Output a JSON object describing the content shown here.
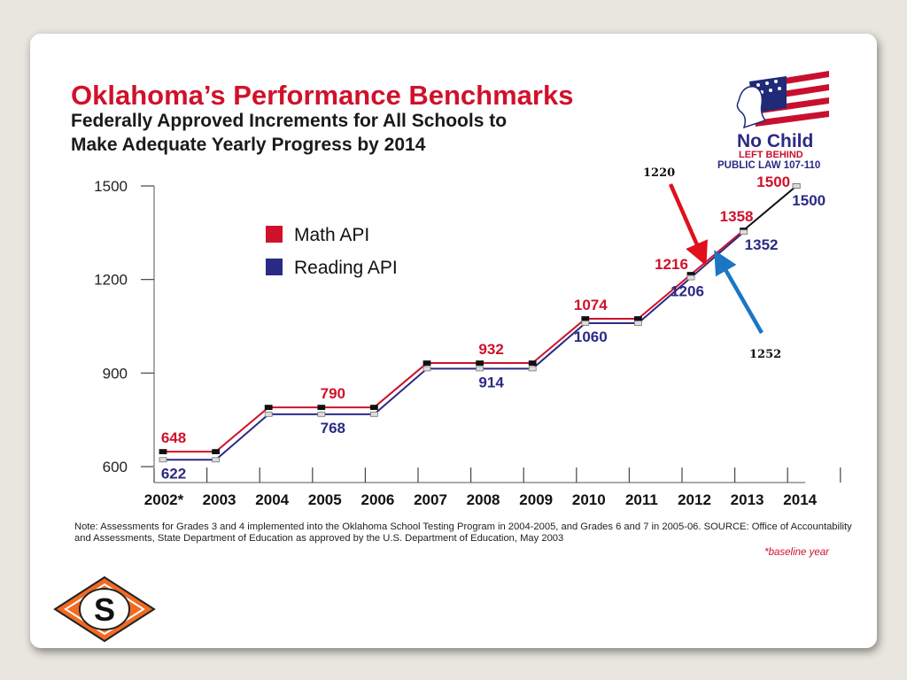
{
  "slide": {
    "title": "Oklahoma’s Performance Benchmarks",
    "subtitle_line1": "Federally Approved Increments for All Schools to",
    "subtitle_line2": "Make Adequate Yearly Progress by 2014",
    "note": "Note:  Assessments for Grades 3 and 4 implemented into the Oklahoma School Testing Program in 2004-2005, and Grades 6 and 7 in 2005-06.  SOURCE:  Office of Accountability and Assessments, State Department of Education as approved by the U.S. Department of Education, May 2003",
    "baseline_note": "*baseline year"
  },
  "logo": {
    "line1": "No Child",
    "line2": "LEFT BEHIND",
    "line3": "PUBLIC LAW 107-110",
    "s_logo": "S"
  },
  "colors": {
    "math": "#d0112b",
    "reading": "#2b2a85",
    "arrow_red": "#e0101c",
    "arrow_blue": "#1b76c4",
    "title": "#d0112b"
  },
  "chart_data": {
    "type": "line",
    "categories": [
      "2002*",
      "2003",
      "2004",
      "2005",
      "2006",
      "2007",
      "2008",
      "2009",
      "2010",
      "2011",
      "2012",
      "2013",
      "2014"
    ],
    "ylim": [
      600,
      1500
    ],
    "yticks": [
      600,
      900,
      1200,
      1500
    ],
    "legend_position": "upper-left",
    "series": [
      {
        "name": "Math  API",
        "values": [
          648,
          648,
          790,
          790,
          790,
          932,
          932,
          932,
          1074,
          1074,
          1216,
          1358,
          1500
        ]
      },
      {
        "name": "Reading  API",
        "values": [
          622,
          622,
          768,
          768,
          768,
          914,
          914,
          914,
          1060,
          1060,
          1206,
          1352,
          1500
        ]
      }
    ],
    "data_labels": [
      {
        "series": 0,
        "index": 0,
        "text": "648"
      },
      {
        "series": 1,
        "index": 0,
        "text": "622"
      },
      {
        "series": 0,
        "index": 3,
        "text": "790"
      },
      {
        "series": 1,
        "index": 3,
        "text": "768"
      },
      {
        "series": 0,
        "index": 6,
        "text": "932"
      },
      {
        "series": 1,
        "index": 6,
        "text": "914"
      },
      {
        "series": 0,
        "index": 8,
        "text": "1074"
      },
      {
        "series": 1,
        "index": 8,
        "text": "1060"
      },
      {
        "series": 0,
        "index": 10,
        "text": "1216"
      },
      {
        "series": 1,
        "index": 10,
        "text": "1206"
      },
      {
        "series": 0,
        "index": 11,
        "text": "1358"
      },
      {
        "series": 1,
        "index": 11,
        "text": "1352"
      },
      {
        "series": 0,
        "index": 12,
        "text": "1500"
      },
      {
        "series": 1,
        "index": 12,
        "text": "1500"
      }
    ],
    "annotations": [
      {
        "text": "1220",
        "color": "red",
        "points_to": 1220
      },
      {
        "text": "1252",
        "color": "blue",
        "points_to": 1252
      }
    ]
  }
}
